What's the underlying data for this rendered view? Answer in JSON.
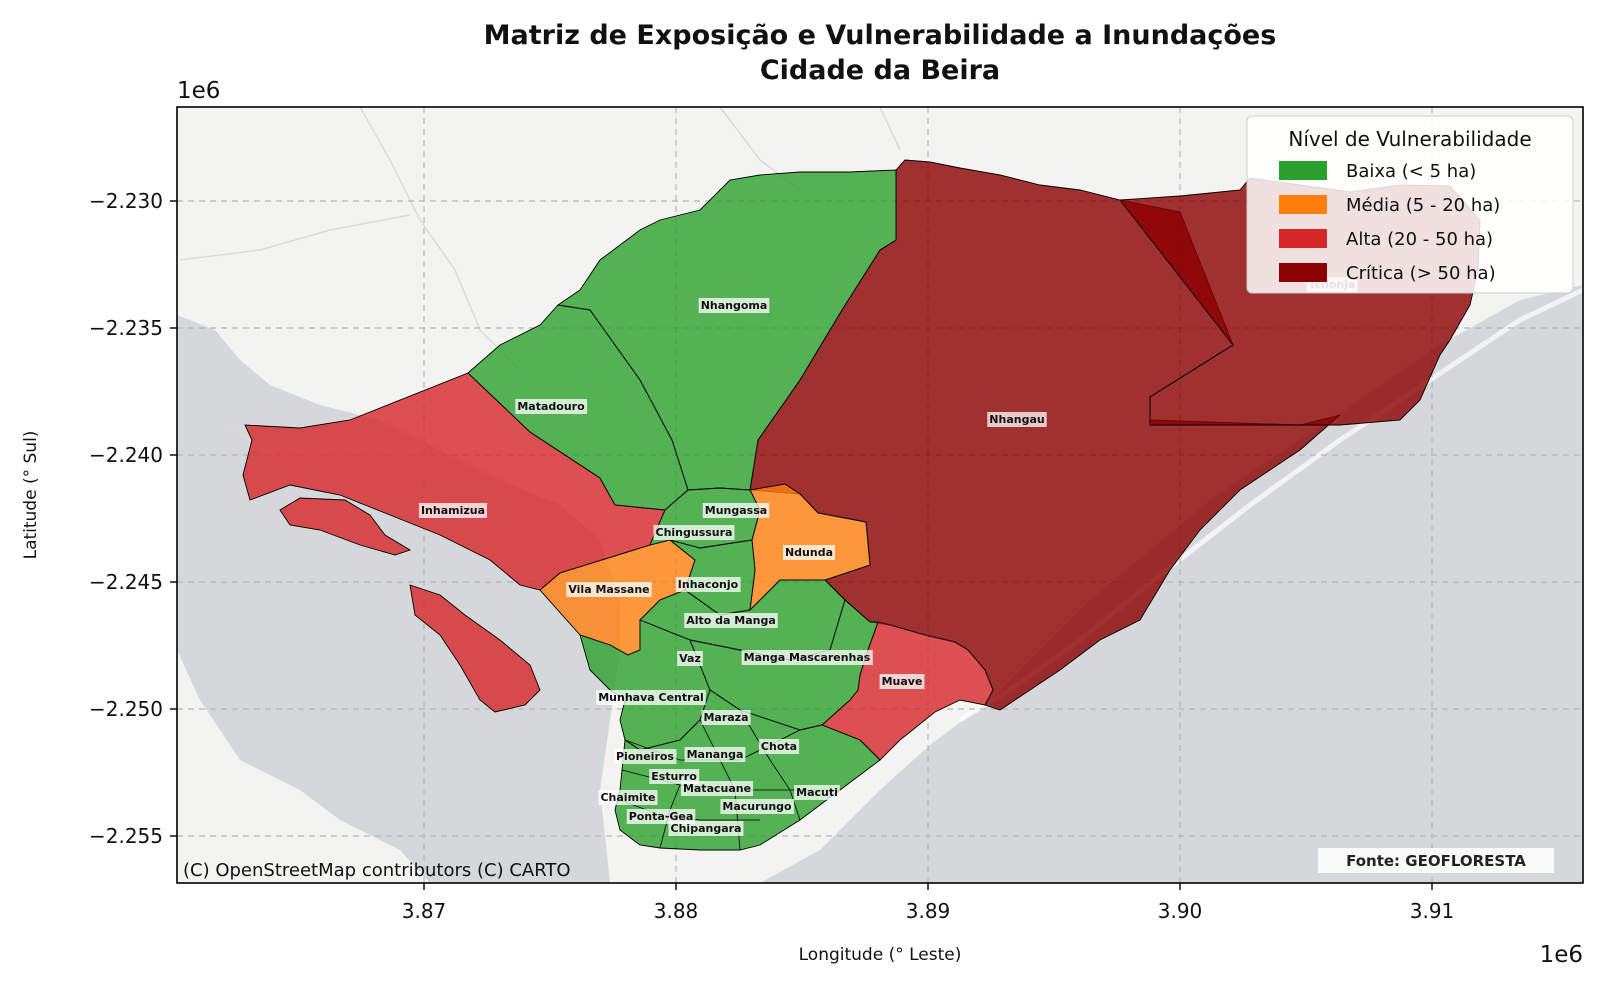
{
  "title_line1": "Matriz de Exposição e Vulnerabilidade a Inundações",
  "title_line2": "Cidade da Beira",
  "x_axis": {
    "label": "Longitude (° Leste)",
    "offset_text": "1e6",
    "ticks": [
      "3.87",
      "3.88",
      "3.89",
      "3.90",
      "3.91"
    ]
  },
  "y_axis": {
    "label": "Latitude (° Sul)",
    "offset_text": "1e6",
    "ticks": [
      "−2.230",
      "−2.235",
      "−2.240",
      "−2.245",
      "−2.250",
      "−2.255"
    ]
  },
  "legend": {
    "title": "Nível de Vulnerabilidade",
    "items": [
      {
        "label": "Baixa (< 5 ha)",
        "color": "#2ca02c"
      },
      {
        "label": "Média (5 - 20 ha)",
        "color": "#ff7f0e"
      },
      {
        "label": "Alta (20 - 50 ha)",
        "color": "#d62728"
      },
      {
        "label": "Crítica (> 50 ha)",
        "color": "#8b0000"
      }
    ]
  },
  "attribution": "(C) OpenStreetMap contributors (C) CARTO",
  "source": "Fonte: GEOFLORESTA",
  "colors": {
    "baixa": "#2ca02c",
    "media": "#ff7f0e",
    "alta": "#d62728",
    "critica": "#8b0000",
    "water": "#d4d8db",
    "land": "#f3f3f2"
  },
  "neighborhoods": [
    {
      "name": "Nhangoma",
      "level": "Baixa"
    },
    {
      "name": "Matadouro",
      "level": "Baixa"
    },
    {
      "name": "Nhangau",
      "level": "Crítica"
    },
    {
      "name": "Tchonja",
      "level": "Crítica"
    },
    {
      "name": "Inhamizua",
      "level": "Alta"
    },
    {
      "name": "Mungassa",
      "level": "Baixa"
    },
    {
      "name": "Chingussura",
      "level": "Baixa"
    },
    {
      "name": "Ndunda",
      "level": "Média"
    },
    {
      "name": "Vila Massane",
      "level": "Média"
    },
    {
      "name": "Inhaconjo",
      "level": "Baixa"
    },
    {
      "name": "Alto da Manga",
      "level": "Baixa"
    },
    {
      "name": "Vaz",
      "level": "Baixa"
    },
    {
      "name": "Manga Mascarenhas",
      "level": "Baixa"
    },
    {
      "name": "Muave",
      "level": "Alta"
    },
    {
      "name": "Munhava Central",
      "level": "Baixa"
    },
    {
      "name": "Maraza",
      "level": "Baixa"
    },
    {
      "name": "Chota",
      "level": "Baixa"
    },
    {
      "name": "Pioneiros",
      "level": "Baixa"
    },
    {
      "name": "Mananga",
      "level": "Baixa"
    },
    {
      "name": "Esturro",
      "level": "Baixa"
    },
    {
      "name": "Matacuane",
      "level": "Baixa"
    },
    {
      "name": "Macuti",
      "level": "Baixa"
    },
    {
      "name": "Chaimite",
      "level": "Baixa"
    },
    {
      "name": "Macurungo",
      "level": "Baixa"
    },
    {
      "name": "Ponta-Gea",
      "level": "Baixa"
    },
    {
      "name": "Chipangara",
      "level": "Baixa"
    }
  ]
}
